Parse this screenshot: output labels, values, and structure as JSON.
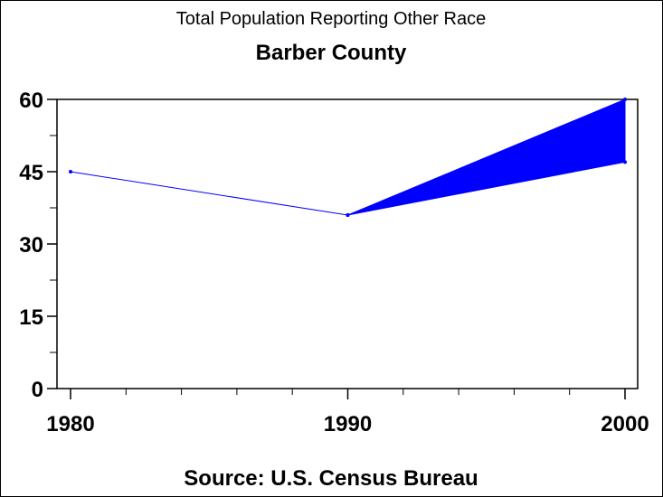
{
  "chart_data": {
    "type": "line",
    "title": "Total Population Reporting Other Race",
    "subtitle": "Barber County",
    "footnote": "Source: U.S. Census Bureau",
    "xlabel": "",
    "ylabel": "",
    "x": [
      1980,
      1990,
      2000
    ],
    "series": [
      {
        "values": [
          45,
          36,
          null
        ],
        "color": "#0000ff"
      }
    ],
    "band": {
      "x": [
        1990,
        2000
      ],
      "lower": [
        36,
        47
      ],
      "upper": [
        36,
        60
      ],
      "color": "#0000ff"
    },
    "xlim": [
      1980,
      2000
    ],
    "ylim": [
      0,
      60
    ],
    "xticks": [
      "1980",
      "1990",
      "2000"
    ],
    "yticks": [
      "0",
      "15",
      "30",
      "45",
      "60"
    ],
    "grid": false
  }
}
